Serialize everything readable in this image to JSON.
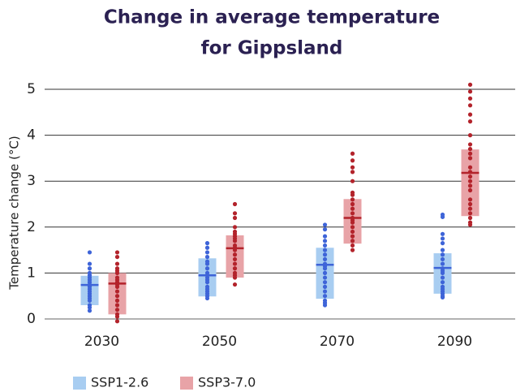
{
  "chart_data": {
    "type": "range-dot",
    "title": [
      "Change in average temperature",
      "for Gippsland"
    ],
    "y_label": "Temperature change (°C)",
    "categories": [
      "2030",
      "2050",
      "2070",
      "2090"
    ],
    "ylim": [
      0,
      5
    ],
    "yticks": [
      0,
      1,
      2,
      3,
      4,
      5
    ],
    "grid": true,
    "legend": "bottom-left",
    "series": [
      {
        "name": "SSP1-2.6",
        "color": "#a8cdf1",
        "marker_color": "#3e64d8",
        "low": [
          0.3,
          0.49,
          0.44,
          0.55
        ],
        "high": [
          0.94,
          1.32,
          1.55,
          1.43
        ],
        "median": [
          0.74,
          0.95,
          1.18,
          1.11
        ],
        "points": [
          [
            1.45,
            1.2,
            1.1,
            1.0,
            0.95,
            0.9,
            0.85,
            0.8,
            0.75,
            0.72,
            0.7,
            0.65,
            0.6,
            0.55,
            0.5,
            0.45,
            0.4,
            0.3,
            0.25,
            0.18
          ],
          [
            1.65,
            1.55,
            1.45,
            1.35,
            1.25,
            1.2,
            1.1,
            1.0,
            0.95,
            0.9,
            0.85,
            0.8,
            0.7,
            0.65,
            0.6,
            0.55,
            0.5,
            0.45
          ],
          [
            2.05,
            1.95,
            1.8,
            1.7,
            1.6,
            1.5,
            1.4,
            1.3,
            1.2,
            1.15,
            1.1,
            1.0,
            0.9,
            0.8,
            0.7,
            0.6,
            0.5,
            0.4,
            0.35,
            0.3
          ],
          [
            2.27,
            2.22,
            1.85,
            1.75,
            1.65,
            1.5,
            1.4,
            1.3,
            1.2,
            1.1,
            1.05,
            1.0,
            0.9,
            0.8,
            0.7,
            0.65,
            0.6,
            0.55,
            0.5,
            0.47
          ]
        ]
      },
      {
        "name": "SSP3-7.0",
        "color": "#e8a3a7",
        "marker_color": "#b3232b",
        "low": [
          0.1,
          0.9,
          1.64,
          2.24
        ],
        "high": [
          1.0,
          1.82,
          2.61,
          3.69
        ],
        "median": [
          0.77,
          1.54,
          2.2,
          3.18
        ],
        "points": [
          [
            1.45,
            1.35,
            1.2,
            1.1,
            1.05,
            1.0,
            0.9,
            0.85,
            0.8,
            0.75,
            0.7,
            0.6,
            0.5,
            0.4,
            0.3,
            0.2,
            0.1,
            0.05,
            -0.05
          ],
          [
            2.5,
            2.3,
            2.2,
            2.0,
            1.9,
            1.85,
            1.8,
            1.75,
            1.7,
            1.6,
            1.55,
            1.5,
            1.4,
            1.3,
            1.2,
            1.1,
            1.0,
            0.95,
            0.9,
            0.75
          ],
          [
            3.6,
            3.45,
            3.3,
            3.2,
            3.0,
            2.75,
            2.7,
            2.6,
            2.5,
            2.4,
            2.3,
            2.2,
            2.15,
            2.1,
            2.0,
            1.9,
            1.8,
            1.7,
            1.6,
            1.5
          ],
          [
            5.1,
            4.95,
            4.8,
            4.65,
            4.45,
            4.3,
            4.0,
            3.8,
            3.7,
            3.6,
            3.5,
            3.3,
            3.2,
            3.1,
            3.0,
            2.9,
            2.8,
            2.6,
            2.5,
            2.4,
            2.3,
            2.2,
            2.1,
            2.05
          ]
        ]
      }
    ]
  }
}
